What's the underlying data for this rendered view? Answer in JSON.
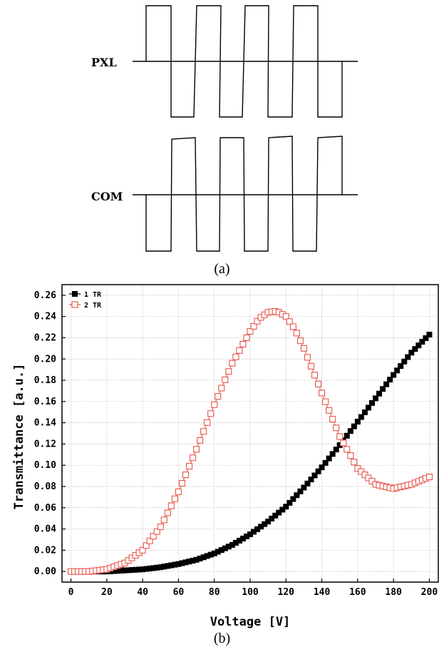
{
  "captions": {
    "a": "(a)",
    "b": "(b)"
  },
  "waveform": {
    "signals": [
      {
        "label": "PXL"
      },
      {
        "label": "COM"
      }
    ]
  },
  "chart_data": {
    "type": "scatter",
    "xlabel": "Voltage [V]",
    "ylabel": "Transmittance [a.u.]",
    "xlim": [
      -5,
      205
    ],
    "ylim": [
      -0.01,
      0.27
    ],
    "x_ticks": [
      0,
      20,
      40,
      60,
      80,
      100,
      120,
      140,
      160,
      180,
      200
    ],
    "y_ticks": [
      "0.00",
      "0.02",
      "0.04",
      "0.06",
      "0.08",
      "0.10",
      "0.12",
      "0.14",
      "0.16",
      "0.18",
      "0.20",
      "0.22",
      "0.24",
      "0.26"
    ],
    "grid": true,
    "legend_position": "top-left",
    "series": [
      {
        "name": "1 TR",
        "color": "#000000",
        "marker": "filled-square",
        "x": [
          0,
          10,
          20,
          30,
          40,
          50,
          60,
          70,
          80,
          90,
          100,
          110,
          120,
          130,
          140,
          150,
          160,
          170,
          180,
          190,
          200
        ],
        "y": [
          0,
          0,
          0,
          0.001,
          0.002,
          0.004,
          0.007,
          0.011,
          0.017,
          0.025,
          0.035,
          0.047,
          0.061,
          0.079,
          0.098,
          0.119,
          0.141,
          0.163,
          0.185,
          0.206,
          0.223
        ]
      },
      {
        "name": "2 TR",
        "color": "#e8554a",
        "marker": "open-square",
        "x": [
          0,
          10,
          20,
          30,
          40,
          50,
          60,
          70,
          80,
          90,
          100,
          105,
          110,
          115,
          120,
          125,
          130,
          140,
          150,
          160,
          170,
          180,
          190,
          200
        ],
        "y": [
          0,
          0,
          0.002,
          0.008,
          0.02,
          0.042,
          0.075,
          0.115,
          0.157,
          0.196,
          0.226,
          0.238,
          0.244,
          0.245,
          0.24,
          0.228,
          0.21,
          0.168,
          0.127,
          0.097,
          0.082,
          0.078,
          0.082,
          0.089
        ]
      }
    ]
  }
}
